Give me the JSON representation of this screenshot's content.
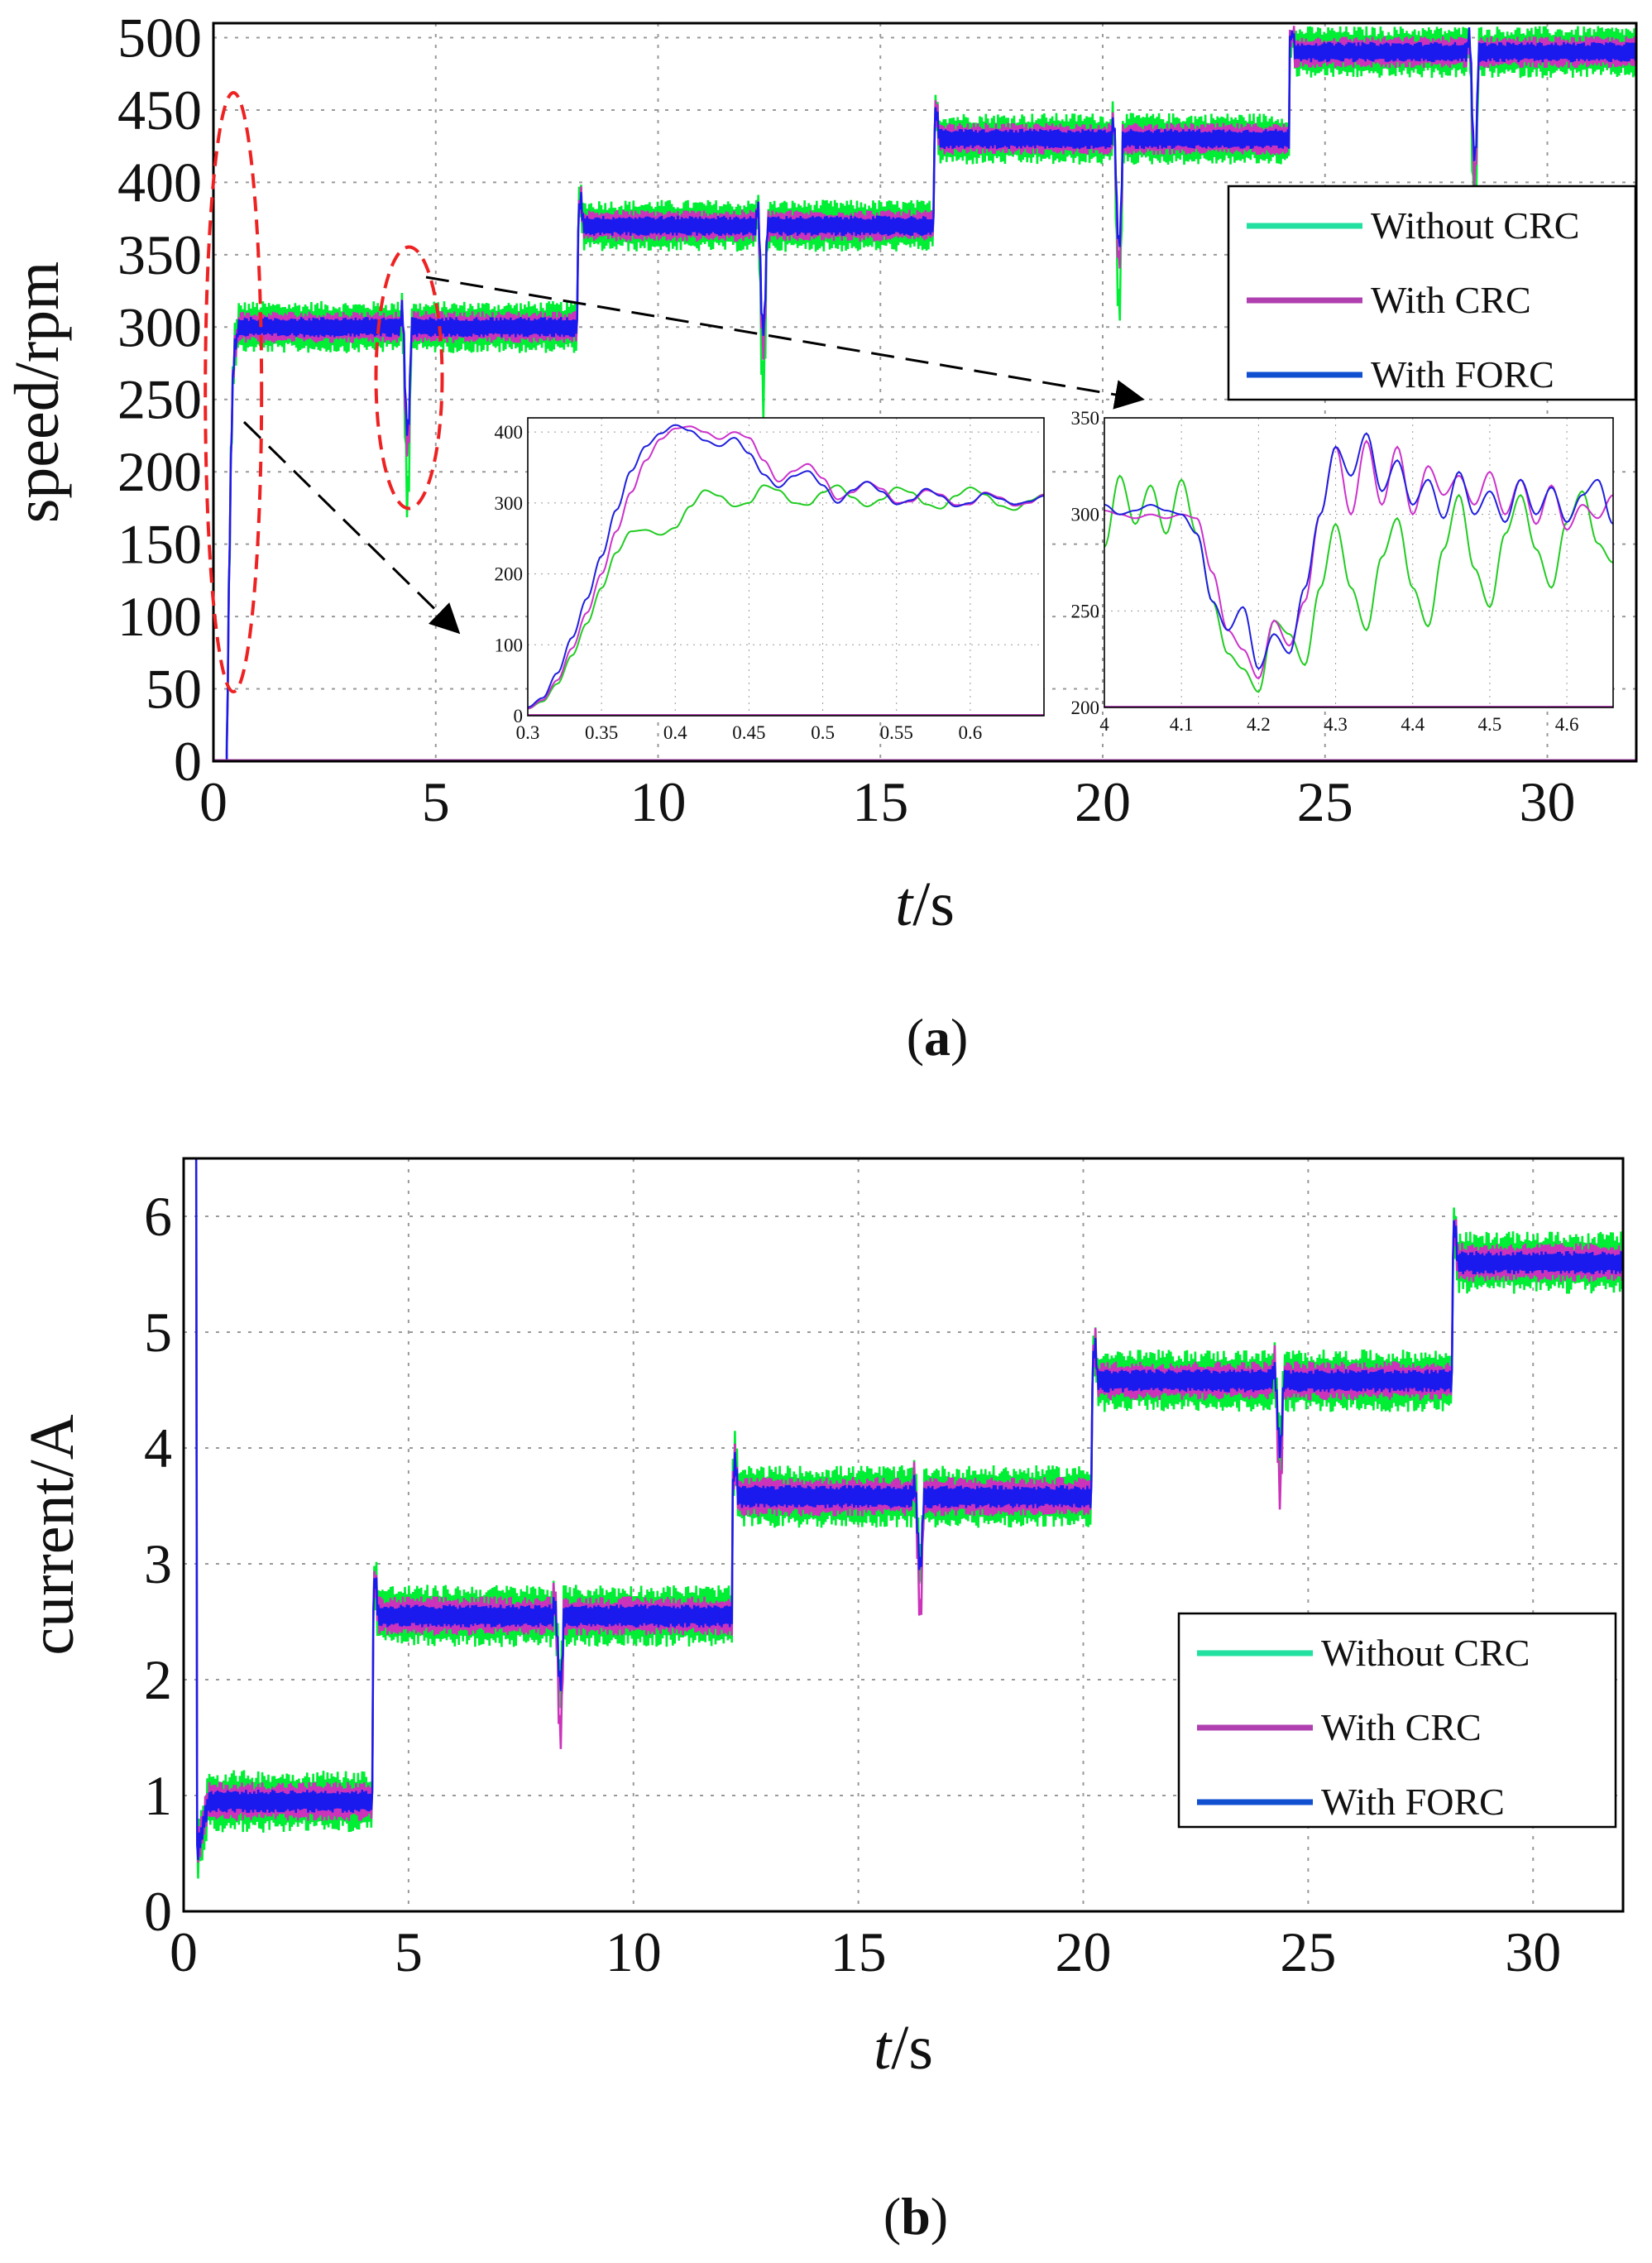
{
  "chart_data": [
    {
      "id": "a",
      "type": "line",
      "caption_letter": "a",
      "xlabel": {
        "italic": "t",
        "rest": "/s"
      },
      "ylabel": "speed/rpm",
      "xlim": [
        0,
        32
      ],
      "ylim": [
        0,
        510
      ],
      "xticks": [
        0,
        5,
        10,
        15,
        20,
        25,
        30
      ],
      "yticks": [
        0,
        50,
        100,
        150,
        200,
        250,
        300,
        350,
        400,
        450,
        500
      ],
      "grid": true,
      "legend_position": "right",
      "step_times": [
        4.2,
        8.2,
        12.2,
        16.2,
        20.2,
        24.2,
        28.2
      ],
      "reference_levels": [
        {
          "t_start": 0.3,
          "t_end": 8.2,
          "value": 300
        },
        {
          "t_start": 8.2,
          "t_end": 16.2,
          "value": 370
        },
        {
          "t_start": 16.2,
          "t_end": 24.2,
          "value": 430
        },
        {
          "t_start": 24.2,
          "t_end": 32,
          "value": 490
        }
      ],
      "disturbance_times": [
        4.2,
        12.2,
        20.2,
        28.2
      ],
      "series": [
        {
          "name": "Without CRC",
          "color": "#00ee33",
          "legend_color": "#22e0a0",
          "ripple_amplitude": 18
        },
        {
          "name": "With CRC",
          "color": "#cc33bb",
          "legend_color": "#b040b0",
          "ripple_amplitude": 11
        },
        {
          "name": "With FORC",
          "color": "#1a1aee",
          "legend_color": "#1050d0",
          "ripple_amplitude": 7
        }
      ],
      "insets": [
        {
          "id": "a-inset-start",
          "xlim": [
            0.3,
            0.65
          ],
          "ylim": [
            0,
            420
          ],
          "xticks": [
            0.3,
            0.35,
            0.4,
            0.45,
            0.5,
            0.55,
            0.6
          ],
          "xtick_labels": [
            "0.3",
            "0.35",
            "0.4",
            "0.45",
            "0.5",
            "0.55",
            "0.6"
          ],
          "yticks": [
            0,
            100,
            200,
            300,
            400
          ],
          "series": [
            {
              "name": "Without CRC",
              "color": "#22cc22",
              "x": [
                0.3,
                0.31,
                0.32,
                0.33,
                0.34,
                0.35,
                0.36,
                0.37,
                0.38,
                0.39,
                0.4,
                0.41,
                0.42,
                0.43,
                0.44,
                0.45,
                0.46,
                0.47,
                0.48,
                0.49,
                0.5,
                0.51,
                0.52,
                0.53,
                0.54,
                0.55,
                0.56,
                0.57,
                0.58,
                0.59,
                0.6,
                0.61,
                0.62,
                0.63,
                0.64,
                0.65
              ],
              "y": [
                10,
                20,
                45,
                85,
                130,
                180,
                230,
                260,
                262,
                255,
                265,
                295,
                318,
                310,
                295,
                300,
                325,
                318,
                300,
                297,
                315,
                325,
                308,
                295,
                305,
                322,
                315,
                298,
                292,
                310,
                322,
                312,
                296,
                290,
                303,
                312
              ]
            },
            {
              "name": "With CRC",
              "color": "#cc33cc",
              "x": [
                0.3,
                0.31,
                0.32,
                0.33,
                0.34,
                0.35,
                0.36,
                0.37,
                0.38,
                0.39,
                0.4,
                0.41,
                0.42,
                0.43,
                0.44,
                0.45,
                0.46,
                0.47,
                0.48,
                0.49,
                0.5,
                0.51,
                0.52,
                0.53,
                0.54,
                0.55,
                0.56,
                0.57,
                0.58,
                0.59,
                0.6,
                0.61,
                0.62,
                0.63,
                0.64,
                0.65
              ],
              "y": [
                10,
                22,
                50,
                95,
                145,
                200,
                260,
                315,
                360,
                390,
                405,
                408,
                400,
                390,
                400,
                392,
                360,
                330,
                345,
                355,
                335,
                305,
                315,
                330,
                320,
                300,
                302,
                318,
                312,
                297,
                298,
                315,
                308,
                296,
                300,
                312
              ]
            },
            {
              "name": "With FORC",
              "color": "#2020dd",
              "x": [
                0.3,
                0.31,
                0.32,
                0.33,
                0.34,
                0.35,
                0.36,
                0.37,
                0.38,
                0.39,
                0.4,
                0.41,
                0.42,
                0.43,
                0.44,
                0.45,
                0.46,
                0.47,
                0.48,
                0.49,
                0.5,
                0.51,
                0.52,
                0.53,
                0.54,
                0.55,
                0.56,
                0.57,
                0.58,
                0.59,
                0.6,
                0.61,
                0.62,
                0.63,
                0.64,
                0.65
              ],
              "y": [
                12,
                25,
                60,
                110,
                165,
                225,
                290,
                345,
                380,
                398,
                410,
                402,
                388,
                380,
                392,
                370,
                340,
                322,
                338,
                345,
                325,
                300,
                318,
                330,
                316,
                298,
                304,
                320,
                310,
                295,
                300,
                314,
                306,
                298,
                302,
                310
              ]
            }
          ]
        },
        {
          "id": "a-inset-disturbance",
          "xlim": [
            4.0,
            4.66
          ],
          "ylim": [
            200,
            350
          ],
          "xticks": [
            4.0,
            4.1,
            4.2,
            4.3,
            4.4,
            4.5,
            4.6
          ],
          "xtick_labels": [
            "4",
            "4.1",
            "4.2",
            "4.3",
            "4.4",
            "4.5",
            "4.6"
          ],
          "yticks": [
            200,
            250,
            300,
            350
          ],
          "series": [
            {
              "name": "Without CRC",
              "color": "#22cc22",
              "x": [
                4.0,
                4.02,
                4.04,
                4.06,
                4.08,
                4.1,
                4.12,
                4.14,
                4.16,
                4.18,
                4.2,
                4.22,
                4.24,
                4.26,
                4.28,
                4.3,
                4.32,
                4.34,
                4.36,
                4.38,
                4.4,
                4.42,
                4.44,
                4.46,
                4.48,
                4.5,
                4.52,
                4.54,
                4.56,
                4.58,
                4.6,
                4.62,
                4.64,
                4.66
              ],
              "y": [
                283,
                320,
                295,
                315,
                290,
                318,
                290,
                255,
                228,
                220,
                208,
                245,
                238,
                222,
                262,
                295,
                262,
                240,
                278,
                298,
                262,
                242,
                282,
                310,
                272,
                252,
                290,
                310,
                282,
                262,
                296,
                312,
                285,
                275
              ]
            },
            {
              "name": "With CRC",
              "color": "#cc33cc",
              "x": [
                4.0,
                4.02,
                4.04,
                4.06,
                4.08,
                4.1,
                4.12,
                4.14,
                4.16,
                4.18,
                4.2,
                4.22,
                4.24,
                4.26,
                4.28,
                4.3,
                4.32,
                4.34,
                4.36,
                4.38,
                4.4,
                4.42,
                4.44,
                4.46,
                4.48,
                4.5,
                4.52,
                4.54,
                4.56,
                4.58,
                4.6,
                4.62,
                4.64,
                4.66
              ],
              "y": [
                302,
                300,
                298,
                300,
                298,
                300,
                298,
                270,
                240,
                230,
                215,
                245,
                232,
                255,
                300,
                335,
                300,
                338,
                305,
                335,
                300,
                325,
                310,
                320,
                305,
                322,
                300,
                318,
                295,
                315,
                292,
                305,
                298,
                310
              ]
            },
            {
              "name": "With FORC",
              "color": "#2020dd",
              "x": [
                4.0,
                4.02,
                4.04,
                4.06,
                4.08,
                4.1,
                4.12,
                4.14,
                4.16,
                4.18,
                4.2,
                4.22,
                4.24,
                4.26,
                4.28,
                4.3,
                4.32,
                4.34,
                4.36,
                4.38,
                4.4,
                4.42,
                4.44,
                4.46,
                4.48,
                4.5,
                4.52,
                4.54,
                4.56,
                4.58,
                4.6,
                4.62,
                4.64,
                4.66
              ],
              "y": [
                305,
                300,
                302,
                305,
                302,
                300,
                290,
                255,
                240,
                252,
                220,
                238,
                228,
                262,
                300,
                335,
                320,
                342,
                312,
                328,
                305,
                318,
                298,
                322,
                300,
                312,
                296,
                318,
                300,
                314,
                296,
                310,
                318,
                295
              ]
            }
          ]
        }
      ]
    },
    {
      "id": "b",
      "type": "line",
      "caption_letter": "b",
      "xlabel": {
        "italic": "t",
        "rest": "/s"
      },
      "ylabel": "current/A",
      "xlim": [
        0,
        32
      ],
      "ylim": [
        0,
        6.5
      ],
      "xticks": [
        0,
        5,
        10,
        15,
        20,
        25,
        30
      ],
      "yticks": [
        0,
        1,
        2,
        3,
        4,
        5,
        6
      ],
      "grid": true,
      "legend_position": "bottom-right",
      "step_times": [
        4.2,
        12.2,
        20.2,
        28.2
      ],
      "reference_levels": [
        {
          "t_start": 0.3,
          "t_end": 4.2,
          "value": 0.95
        },
        {
          "t_start": 4.2,
          "t_end": 12.2,
          "value": 2.55
        },
        {
          "t_start": 12.2,
          "t_end": 20.2,
          "value": 3.58
        },
        {
          "t_start": 20.2,
          "t_end": 28.2,
          "value": 4.58
        },
        {
          "t_start": 28.2,
          "t_end": 32,
          "value": 5.6
        }
      ],
      "disturbance_times": [
        8.2,
        16.2,
        24.2
      ],
      "series": [
        {
          "name": "Without CRC",
          "color": "#00ee33",
          "legend_color": "#22e0a0",
          "ripple_amplitude": 0.27
        },
        {
          "name": "With CRC",
          "color": "#cc33bb",
          "legend_color": "#b040b0",
          "ripple_amplitude": 0.17
        },
        {
          "name": "With FORC",
          "color": "#1a1aee",
          "legend_color": "#1050d0",
          "ripple_amplitude": 0.1
        }
      ]
    }
  ]
}
